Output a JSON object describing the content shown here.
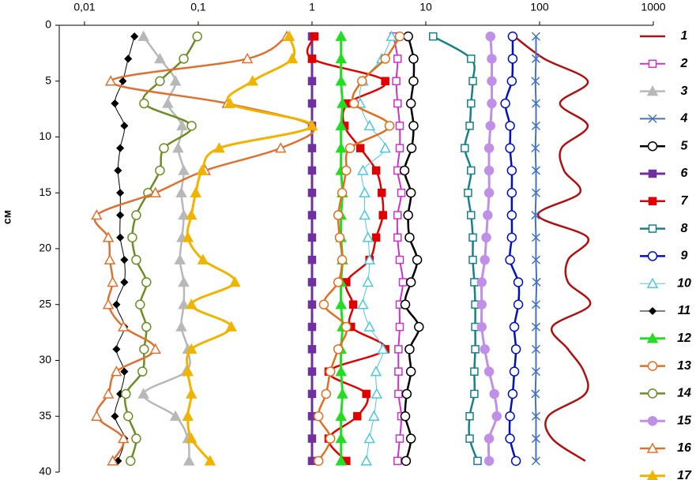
{
  "chart_data": {
    "type": "line",
    "orientation": "vertical-profile",
    "y_label": "см",
    "xscale": "log",
    "xlim": [
      0.006,
      1000
    ],
    "xticks": [
      {
        "value": 0.01,
        "label": "0,01"
      },
      {
        "value": 0.1,
        "label": "0,1"
      },
      1,
      10,
      100,
      1000
    ],
    "ylim": [
      0,
      40
    ],
    "y_reversed": true,
    "yticks": [
      0,
      5,
      10,
      15,
      20,
      25,
      30,
      35,
      40
    ],
    "y": [
      1,
      3,
      5,
      7,
      9,
      11,
      13,
      15,
      17,
      19,
      21,
      23,
      25,
      27,
      29,
      31,
      33,
      35,
      37,
      39
    ],
    "legend": "right",
    "series": [
      {
        "name": "1",
        "color": "#b01010",
        "marker": "none",
        "filled": false,
        "line_width": 2.5,
        "values": [
          60,
          110,
          265,
          151,
          265,
          156,
          164,
          226,
          97,
          265,
          178,
          178,
          278,
          129,
          178,
          245,
          252,
          119,
          129,
          252
        ]
      },
      {
        "name": "2",
        "color": "#cc33cc",
        "marker": "square",
        "filled": false,
        "line_width": 2,
        "values": [
          5.2,
          5.65,
          5.5,
          5.65,
          5.9,
          5.9,
          5.65,
          6.1,
          5.65,
          5.65,
          5.9,
          6.3,
          5.9,
          5.9,
          5.75,
          5.75,
          5.75,
          6.1,
          5.9,
          5.65
        ]
      },
      {
        "name": "3",
        "color": "#b8b8b8",
        "marker": "triangle",
        "filled": true,
        "line_width": 2.5,
        "values": [
          0.033,
          0.046,
          0.063,
          0.054,
          0.072,
          0.0665,
          0.0745,
          0.071,
          0.0745,
          0.072,
          0.069,
          0.0745,
          0.0745,
          0.071,
          0.081,
          0.078,
          0.033,
          0.063,
          0.081,
          0.083
        ]
      },
      {
        "name": "4",
        "color": "#4472c4",
        "marker": "x",
        "filled": false,
        "line_width": 2,
        "values": [
          93,
          93,
          92,
          93,
          93,
          92,
          93,
          93,
          92,
          93,
          93,
          94,
          93,
          93,
          93,
          93,
          92,
          93,
          93,
          93
        ]
      },
      {
        "name": "5",
        "color": "#000000",
        "marker": "circle",
        "filled": false,
        "line_width": 2.5,
        "values": [
          7.0,
          7.8,
          7.8,
          7.4,
          7.8,
          7.5,
          6.5,
          7.4,
          7.0,
          7.2,
          8.4,
          7.4,
          6.6,
          8.7,
          7.2,
          7.4,
          6.8,
          6.6,
          7.4,
          6.7
        ]
      },
      {
        "name": "6",
        "color": "#7030a0",
        "marker": "square",
        "filled": true,
        "line_width": 3,
        "values": [
          1,
          1,
          1,
          1,
          1,
          1,
          1,
          1,
          1,
          1,
          1,
          1,
          1,
          1,
          1,
          1,
          1,
          1,
          1,
          1
        ]
      },
      {
        "name": "7",
        "color": "#e00000",
        "marker": "square",
        "filled": true,
        "line_width": 2.5,
        "values": [
          1.05,
          1.0,
          4.4,
          2.06,
          1.93,
          2.66,
          3.66,
          4.1,
          4.2,
          3.66,
          3.2,
          2.0,
          2.3,
          2.2,
          4.4,
          1.4,
          3.0,
          2.5,
          1.4,
          2.0
        ]
      },
      {
        "name": "8",
        "color": "#17808a",
        "marker": "square",
        "filled": false,
        "line_width": 2.5,
        "values": [
          11.6,
          25,
          25.9,
          25,
          24.3,
          22,
          25,
          23.5,
          25,
          25.9,
          25.9,
          26.7,
          27.2,
          27.2,
          27.2,
          26.7,
          26.7,
          24.3,
          24.3,
          28.5
        ]
      },
      {
        "name": "9",
        "color": "#0010c0",
        "marker": "circle",
        "filled": false,
        "line_width": 2.5,
        "values": [
          58,
          58,
          57,
          50,
          55,
          55,
          57,
          57,
          57,
          57,
          55,
          65,
          65,
          60,
          62,
          60,
          58,
          55,
          55,
          62
        ]
      },
      {
        "name": "10",
        "color": "#4bc8e0",
        "marker": "triangle",
        "filled": false,
        "line_width": 1,
        "values": [
          5.0,
          4.1,
          2.8,
          2.65,
          3.2,
          4.4,
          2.8,
          2.9,
          2.9,
          3.1,
          3.2,
          3.1,
          2.8,
          3.2,
          4.2,
          3.65,
          3.7,
          3.5,
          3.2,
          3.0
        ]
      },
      {
        "name": "11",
        "color": "#000000",
        "marker": "diamond",
        "filled": true,
        "line_width": 1,
        "values": [
          0.0275,
          0.0242,
          0.0217,
          0.0185,
          0.0224,
          0.0206,
          0.0197,
          0.0206,
          0.0206,
          0.0206,
          0.0224,
          0.0224,
          0.0191,
          0.0224,
          0.0191,
          0.0224,
          0.0206,
          0.0185,
          0.0224,
          0.0197
        ]
      },
      {
        "name": "12",
        "color": "#22dd22",
        "marker": "triangle",
        "filled": true,
        "line_width": 3,
        "values": [
          1.8,
          1.8,
          1.8,
          1.85,
          1.8,
          1.8,
          1.8,
          1.85,
          1.8,
          1.8,
          1.85,
          1.8,
          1.8,
          1.85,
          1.8,
          1.8,
          1.85,
          1.8,
          1.8,
          1.8
        ]
      },
      {
        "name": "13",
        "color": "#e07020",
        "marker": "circle",
        "filled": false,
        "line_width": 2.5,
        "values": [
          5.9,
          4.4,
          2.75,
          2.34,
          4.8,
          2.16,
          2.0,
          1.84,
          1.7,
          1.75,
          1.84,
          1.7,
          1.27,
          2.0,
          1.7,
          1.45,
          1.33,
          1.14,
          1.45,
          1.14
        ]
      },
      {
        "name": "14",
        "color": "#6b8e23",
        "marker": "circle",
        "filled": false,
        "line_width": 2.5,
        "values": [
          0.098,
          0.0745,
          0.046,
          0.0334,
          0.0874,
          0.0499,
          0.046,
          0.0362,
          0.0285,
          0.0263,
          0.0285,
          0.035,
          0.0308,
          0.035,
          0.0334,
          0.0323,
          0.0231,
          0.0242,
          0.0285,
          0.0254
        ]
      },
      {
        "name": "15",
        "color": "#c090e8",
        "marker": "circle",
        "filled": true,
        "line_width": 3,
        "values": [
          37,
          38,
          38,
          38,
          37,
          36,
          36,
          36,
          35,
          34,
          33,
          31,
          31,
          31,
          33,
          36,
          40,
          42,
          36,
          36
        ]
      },
      {
        "name": "16",
        "color": "#e07030",
        "marker": "triangle",
        "filled": false,
        "line_width": 2.5,
        "values": [
          0.6,
          0.27,
          0.017,
          0.18,
          1.0,
          0.53,
          0.115,
          0.042,
          0.0128,
          0.0162,
          0.0167,
          0.0177,
          0.0162,
          0.022,
          0.042,
          0.0191,
          0.0162,
          0.0128,
          0.022,
          0.0177
        ]
      },
      {
        "name": "17",
        "color": "#f0b400",
        "marker": "triangle",
        "filled": true,
        "line_width": 3,
        "values": [
          0.63,
          0.67,
          0.3,
          0.19,
          1.0,
          0.153,
          0.108,
          0.095,
          0.087,
          0.081,
          0.11,
          0.21,
          0.087,
          0.195,
          0.087,
          0.081,
          0.087,
          0.081,
          0.087,
          0.127
        ]
      }
    ]
  }
}
